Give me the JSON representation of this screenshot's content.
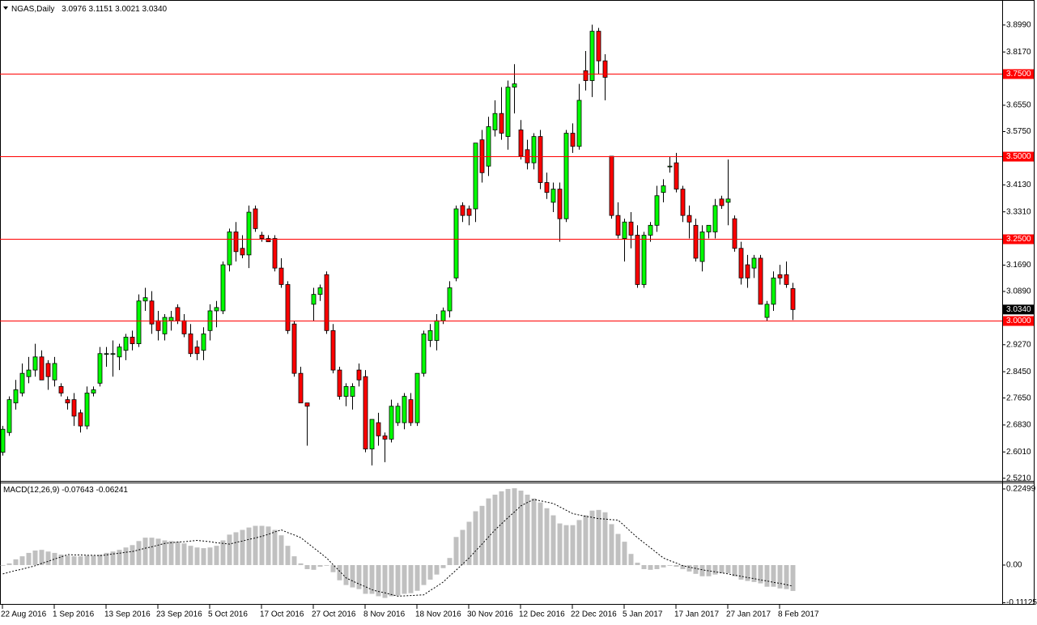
{
  "chart_data": [
    {
      "type": "candlestick",
      "title": "NGAS,Daily",
      "last_labels": [
        "3.0976",
        "3.1151",
        "3.0021",
        "3.0340"
      ],
      "categories": [
        "22 Aug 2016",
        null,
        null,
        null,
        null,
        null,
        null,
        null,
        "1 Sep 2016",
        null,
        null,
        null,
        null,
        null,
        null,
        null,
        "13 Sep 2016",
        null,
        null,
        null,
        null,
        null,
        null,
        null,
        "23 Sep 2016",
        null,
        null,
        null,
        null,
        null,
        null,
        null,
        "5 Oct 2016",
        null,
        null,
        null,
        null,
        null,
        null,
        null,
        "17 Oct 2016",
        null,
        null,
        null,
        null,
        null,
        null,
        null,
        "27 Oct 2016",
        null,
        null,
        null,
        null,
        null,
        null,
        null,
        "8 Nov 2016",
        null,
        null,
        null,
        null,
        null,
        null,
        null,
        "18 Nov 2016",
        null,
        null,
        null,
        null,
        null,
        null,
        null,
        "30 Nov 2016",
        null,
        null,
        null,
        null,
        null,
        null,
        null,
        "12 Dec 2016",
        null,
        null,
        null,
        null,
        null,
        null,
        null,
        "22 Dec 2016",
        null,
        null,
        null,
        null,
        null,
        null,
        null,
        "5 Jan 2017",
        null,
        null,
        null,
        null,
        null,
        null,
        null,
        "17 Jan 2017",
        null,
        null,
        null,
        null,
        null,
        null,
        null,
        "27 Jan 2017",
        null,
        null,
        null,
        null,
        null,
        null,
        null,
        "8 Feb 2017",
        null,
        null
      ],
      "open": [
        2.6,
        2.66,
        2.75,
        2.78,
        2.83,
        2.85,
        2.89,
        2.87,
        2.82,
        2.8,
        2.76,
        2.76,
        2.72,
        2.68,
        2.78,
        2.81,
        2.9,
        2.9,
        2.89,
        2.91,
        2.95,
        2.93,
        3.06,
        3.06,
        3.0,
        2.96,
        3.0,
        3.04,
        3.0,
        2.96,
        2.92,
        2.91,
        2.97,
        3.03,
        3.03,
        3.17,
        3.27,
        3.22,
        3.2,
        3.34,
        3.26,
        3.25,
        3.25,
        3.16,
        3.11,
        2.99,
        2.84,
        2.75,
        3.05,
        3.08,
        3.14,
        2.97,
        2.85,
        2.77,
        2.77,
        2.85,
        2.83,
        2.61,
        2.69,
        2.65,
        2.64,
        2.69,
        2.69,
        2.76,
        2.69,
        2.84,
        2.94,
        2.94,
        3.0,
        3.03,
        3.13,
        3.35,
        3.34,
        3.34,
        3.55,
        3.47,
        3.58,
        3.63,
        3.56,
        3.71,
        3.58,
        3.52,
        3.48,
        3.56,
        3.42,
        3.36,
        3.4,
        3.31,
        3.57,
        3.53,
        3.76,
        3.73,
        3.88,
        3.79,
        3.5,
        3.32,
        3.25,
        3.3,
        3.26,
        3.11,
        3.26,
        3.29,
        3.39,
        3.47,
        3.48,
        3.4,
        3.32,
        3.29,
        3.18,
        3.27,
        3.27,
        3.37,
        3.36,
        3.31,
        3.22,
        3.17,
        3.16,
        3.19,
        3.01,
        3.05,
        3.14,
        3.14,
        3.0976
      ],
      "high": [
        2.68,
        2.77,
        2.82,
        2.87,
        2.89,
        2.93,
        2.91,
        2.88,
        2.89,
        2.81,
        2.77,
        2.78,
        2.73,
        2.8,
        2.8,
        2.92,
        2.92,
        2.94,
        2.93,
        2.96,
        2.97,
        3.08,
        3.1,
        3.09,
        3.03,
        3.02,
        3.03,
        3.05,
        3.02,
        2.99,
        2.94,
        2.98,
        3.05,
        3.06,
        3.18,
        3.28,
        3.3,
        3.26,
        3.35,
        3.35,
        3.27,
        3.26,
        3.26,
        3.19,
        3.12,
        3.0,
        2.86,
        2.75,
        3.1,
        3.11,
        3.15,
        2.99,
        2.86,
        2.81,
        2.81,
        2.87,
        2.85,
        2.7,
        2.72,
        2.66,
        2.76,
        2.75,
        2.78,
        2.78,
        2.84,
        2.97,
        2.99,
        3.02,
        3.04,
        3.12,
        3.35,
        3.36,
        3.35,
        3.54,
        3.58,
        3.62,
        3.67,
        3.71,
        3.73,
        3.78,
        3.61,
        3.55,
        3.57,
        3.58,
        3.45,
        3.42,
        3.42,
        3.58,
        3.6,
        3.72,
        3.82,
        3.9,
        3.89,
        3.81,
        3.5,
        3.36,
        3.31,
        3.33,
        3.29,
        3.27,
        3.3,
        3.41,
        3.43,
        3.5,
        3.51,
        3.41,
        3.35,
        3.31,
        3.29,
        3.29,
        3.37,
        3.38,
        3.49,
        3.32,
        3.24,
        3.2,
        3.2,
        3.2,
        3.06,
        3.15,
        3.17,
        3.18,
        3.1151
      ],
      "low": [
        2.59,
        2.65,
        2.73,
        2.77,
        2.81,
        2.83,
        2.82,
        2.79,
        2.8,
        2.77,
        2.73,
        2.68,
        2.66,
        2.67,
        2.77,
        2.8,
        2.86,
        2.83,
        2.85,
        2.88,
        2.91,
        2.92,
        3.03,
        2.96,
        2.94,
        2.94,
        2.97,
        2.99,
        2.95,
        2.89,
        2.88,
        2.88,
        2.94,
        2.98,
        3.02,
        3.15,
        3.18,
        3.19,
        3.16,
        3.27,
        3.24,
        3.24,
        3.15,
        3.1,
        2.96,
        2.83,
        2.75,
        2.62,
        3.0,
        3.06,
        2.96,
        2.84,
        2.76,
        2.74,
        2.73,
        2.8,
        2.6,
        2.56,
        2.62,
        2.57,
        2.63,
        2.68,
        2.67,
        2.68,
        2.68,
        2.83,
        2.92,
        2.91,
        2.99,
        3.01,
        3.12,
        3.3,
        3.29,
        3.3,
        3.42,
        3.44,
        3.56,
        3.55,
        3.52,
        3.63,
        3.49,
        3.46,
        3.46,
        3.4,
        3.37,
        3.33,
        3.24,
        3.3,
        3.51,
        3.52,
        3.7,
        3.68,
        3.75,
        3.67,
        3.31,
        3.25,
        3.18,
        3.22,
        3.1,
        3.1,
        3.24,
        3.27,
        3.36,
        3.45,
        3.39,
        3.3,
        3.25,
        3.18,
        3.15,
        3.25,
        3.25,
        3.34,
        3.29,
        3.21,
        3.11,
        3.1,
        3.13,
        3.05,
        3.0,
        3.03,
        3.11,
        3.1,
        3.0021
      ],
      "close": [
        2.67,
        2.76,
        2.79,
        2.84,
        2.85,
        2.89,
        2.82,
        2.83,
        2.87,
        2.78,
        2.75,
        2.71,
        2.68,
        2.78,
        2.79,
        2.9,
        2.9,
        2.9,
        2.92,
        2.95,
        2.93,
        3.06,
        3.07,
        2.99,
        2.97,
        3.01,
        3.01,
        3.0,
        2.96,
        2.9,
        2.9,
        2.96,
        3.03,
        3.04,
        3.17,
        3.27,
        3.21,
        3.2,
        3.33,
        3.28,
        3.25,
        3.24,
        3.16,
        3.11,
        2.97,
        2.84,
        2.75,
        2.74,
        3.08,
        3.1,
        2.97,
        2.85,
        2.77,
        2.8,
        2.8,
        2.82,
        2.61,
        2.7,
        2.65,
        2.64,
        2.74,
        2.74,
        2.77,
        2.69,
        2.84,
        2.96,
        2.97,
        3.0,
        3.03,
        3.1,
        3.34,
        3.32,
        3.32,
        3.54,
        3.45,
        3.59,
        3.63,
        3.57,
        3.71,
        3.72,
        3.5,
        3.48,
        3.56,
        3.42,
        3.39,
        3.4,
        3.31,
        3.57,
        3.53,
        3.67,
        3.73,
        3.88,
        3.79,
        3.74,
        3.32,
        3.26,
        3.3,
        3.26,
        3.11,
        3.26,
        3.29,
        3.38,
        3.41,
        3.47,
        3.4,
        3.32,
        3.3,
        3.19,
        3.27,
        3.29,
        3.35,
        3.35,
        3.37,
        3.22,
        3.13,
        3.13,
        3.19,
        3.05,
        3.05,
        3.13,
        3.13,
        3.11,
        3.034
      ],
      "up_color": "#00ff00",
      "down_color": "#ff0000",
      "ylim": [
        2.513,
        3.975
      ],
      "yticks": [
        {
          "value": 3.899,
          "label": "3.8990"
        },
        {
          "value": 3.817,
          "label": "3.8170"
        },
        {
          "value": 3.655,
          "label": "3.6550"
        },
        {
          "value": 3.575,
          "label": "3.5750"
        },
        {
          "value": 3.413,
          "label": "3.4130"
        },
        {
          "value": 3.331,
          "label": "3.3310"
        },
        {
          "value": 3.169,
          "label": "3.1690"
        },
        {
          "value": 3.089,
          "label": "3.0890"
        },
        {
          "value": 2.927,
          "label": "2.9270"
        },
        {
          "value": 2.845,
          "label": "2.8450"
        },
        {
          "value": 2.765,
          "label": "2.7650"
        },
        {
          "value": 2.683,
          "label": "2.6830"
        },
        {
          "value": 2.601,
          "label": "2.6010"
        },
        {
          "value": 2.521,
          "label": "2.5210"
        }
      ],
      "levels": [
        {
          "value": 3.75,
          "label": "3.7500"
        },
        {
          "value": 3.5,
          "label": "3.5000"
        },
        {
          "value": 3.25,
          "label": "3.2500"
        },
        {
          "value": 3,
          "label": "3.0000"
        }
      ],
      "level_color": "#ff0000"
    },
    {
      "type": "macd",
      "title": "MACD(12,26,9)",
      "series": [
        {
          "color": "#c0c0c0",
          "values": [
            -0.002,
            0.005,
            0.017,
            0.026,
            0.036,
            0.043,
            0.045,
            0.04,
            0.036,
            0.031,
            0.028,
            0.026,
            0.026,
            0.028,
            0.028,
            0.031,
            0.036,
            0.04,
            0.045,
            0.052,
            0.059,
            0.071,
            0.081,
            0.081,
            0.078,
            0.073,
            0.071,
            0.069,
            0.064,
            0.057,
            0.052,
            0.05,
            0.052,
            0.057,
            0.073,
            0.09,
            0.097,
            0.104,
            0.111,
            0.116,
            0.116,
            0.114,
            0.104,
            0.088,
            0.057,
            0.026,
            0.005,
            -0.012,
            -0.014,
            -0.005,
            -0.002,
            -0.021,
            -0.045,
            -0.059,
            -0.066,
            -0.071,
            -0.085,
            -0.085,
            -0.092,
            -0.097,
            -0.092,
            -0.09,
            -0.085,
            -0.083,
            -0.076,
            -0.059,
            -0.043,
            -0.028,
            -0.009,
            0.021,
            0.083,
            0.104,
            0.128,
            0.159,
            0.175,
            0.197,
            0.208,
            0.218,
            0.225,
            0.227,
            0.22,
            0.208,
            0.197,
            0.185,
            0.168,
            0.147,
            0.123,
            0.118,
            0.118,
            0.133,
            0.147,
            0.161,
            0.163,
            0.156,
            0.121,
            0.092,
            0.069,
            0.033,
            0.007,
            -0.012,
            -0.014,
            -0.012,
            -0.007,
            -0.002,
            -0.005,
            -0.012,
            -0.019,
            -0.026,
            -0.033,
            -0.033,
            -0.028,
            -0.024,
            -0.024,
            -0.033,
            -0.043,
            -0.047,
            -0.05,
            -0.054,
            -0.064,
            -0.064,
            -0.069,
            -0.071,
            -0.07643
          ]
        },
        {
          "color": "#000000",
          "values": [
            -0.026,
            -0.021,
            -0.016,
            -0.012,
            -0.007,
            -0.002,
            0.005,
            0.011,
            0.018,
            0.024,
            0.031,
            0.03,
            0.03,
            0.029,
            0.029,
            0.028,
            0.03,
            0.033,
            0.035,
            0.038,
            0.04,
            0.045,
            0.05,
            0.054,
            0.059,
            0.064,
            0.066,
            0.068,
            0.069,
            0.071,
            0.073,
            0.071,
            0.069,
            0.066,
            0.064,
            0.062,
            0.067,
            0.071,
            0.076,
            0.08,
            0.085,
            0.091,
            0.098,
            0.104,
            0.096,
            0.089,
            0.081,
            0.066,
            0.051,
            0.036,
            0.021,
            0.001,
            -0.018,
            -0.038,
            -0.047,
            -0.056,
            -0.064,
            -0.073,
            -0.078,
            -0.082,
            -0.087,
            -0.092,
            -0.091,
            -0.09,
            -0.089,
            -0.088,
            -0.075,
            -0.063,
            -0.05,
            -0.032,
            -0.015,
            0.003,
            0.021,
            0.042,
            0.062,
            0.083,
            0.104,
            0.122,
            0.14,
            0.157,
            0.175,
            0.185,
            0.194,
            0.19,
            0.186,
            0.182,
            0.172,
            0.162,
            0.152,
            0.148,
            0.144,
            0.141,
            0.137,
            0.136,
            0.134,
            0.133,
            0.116,
            0.098,
            0.081,
            0.066,
            0.051,
            0.036,
            0.021,
            0.013,
            0.006,
            -0.002,
            -0.006,
            -0.01,
            -0.014,
            -0.017,
            -0.02,
            -0.023,
            -0.026,
            -0.03,
            -0.033,
            -0.037,
            -0.04,
            -0.044,
            -0.047,
            -0.051,
            -0.054,
            -0.058,
            -0.06241
          ]
        }
      ],
      "ylim": [
        -0.1125,
        0.2416
      ],
      "yticks": [
        0.22499,
        {
          "value": 0,
          "label": "0.00"
        },
        -0.11125
      ]
    }
  ]
}
